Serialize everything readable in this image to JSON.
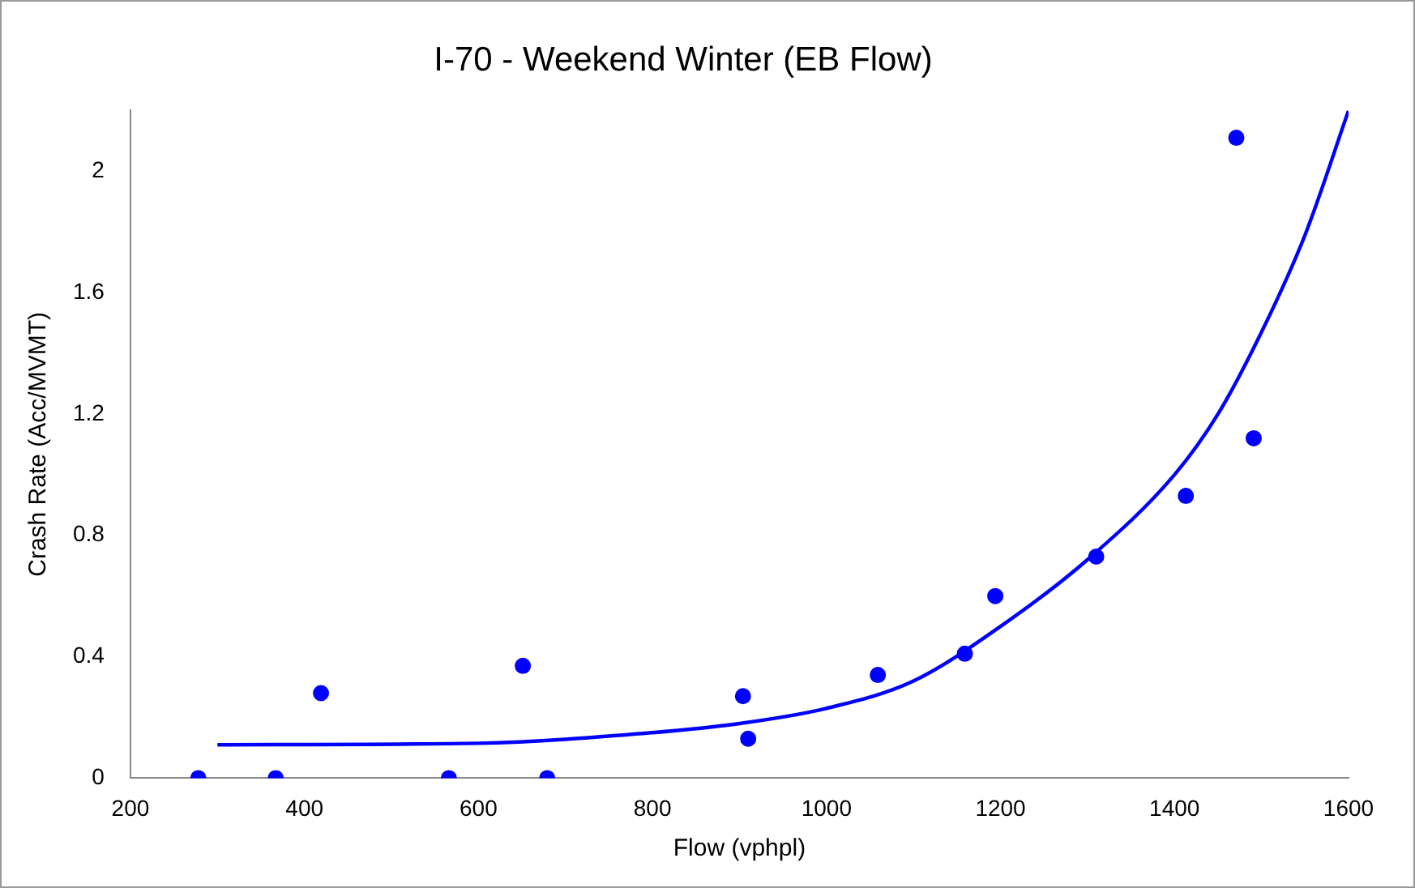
{
  "chart_data": {
    "type": "scatter",
    "title": "I-70 - Weekend Winter (EB Flow)",
    "xlabel": "Flow (vphpl)",
    "ylabel": "Crash Rate (Acc/MVMT)",
    "xlim": [
      200,
      1600
    ],
    "xticks": [
      200,
      400,
      600,
      800,
      1000,
      1200,
      1400,
      1600
    ],
    "ylim": [
      0,
      2.2
    ],
    "yticks": [
      0,
      0.4,
      0.8,
      1.2,
      1.6,
      2
    ],
    "grid": false,
    "legend": false,
    "marker": "circle",
    "series": [
      {
        "color": "#0000ff",
        "x": [
          278,
          367,
          419,
          566,
          651,
          679,
          904,
          910,
          1059,
          1159,
          1194,
          1310,
          1413,
          1471,
          1491
        ],
        "values": [
          0,
          0,
          0.28,
          0,
          0.37,
          0,
          0.27,
          0.13,
          0.34,
          0.41,
          0.6,
          0.73,
          0.93,
          2.11,
          1.12
        ]
      },
      {
        "type": "line",
        "color": "#0000ff",
        "marker": "none",
        "x": [
          300,
          600,
          800,
          900,
          1000,
          1100,
          1200,
          1300,
          1400,
          1450,
          1500,
          1550,
          1600
        ],
        "values": [
          0.11,
          0.115,
          0.15,
          0.18,
          0.23,
          0.32,
          0.5,
          0.72,
          1.0,
          1.2,
          1.47,
          1.79,
          2.2
        ]
      }
    ]
  }
}
